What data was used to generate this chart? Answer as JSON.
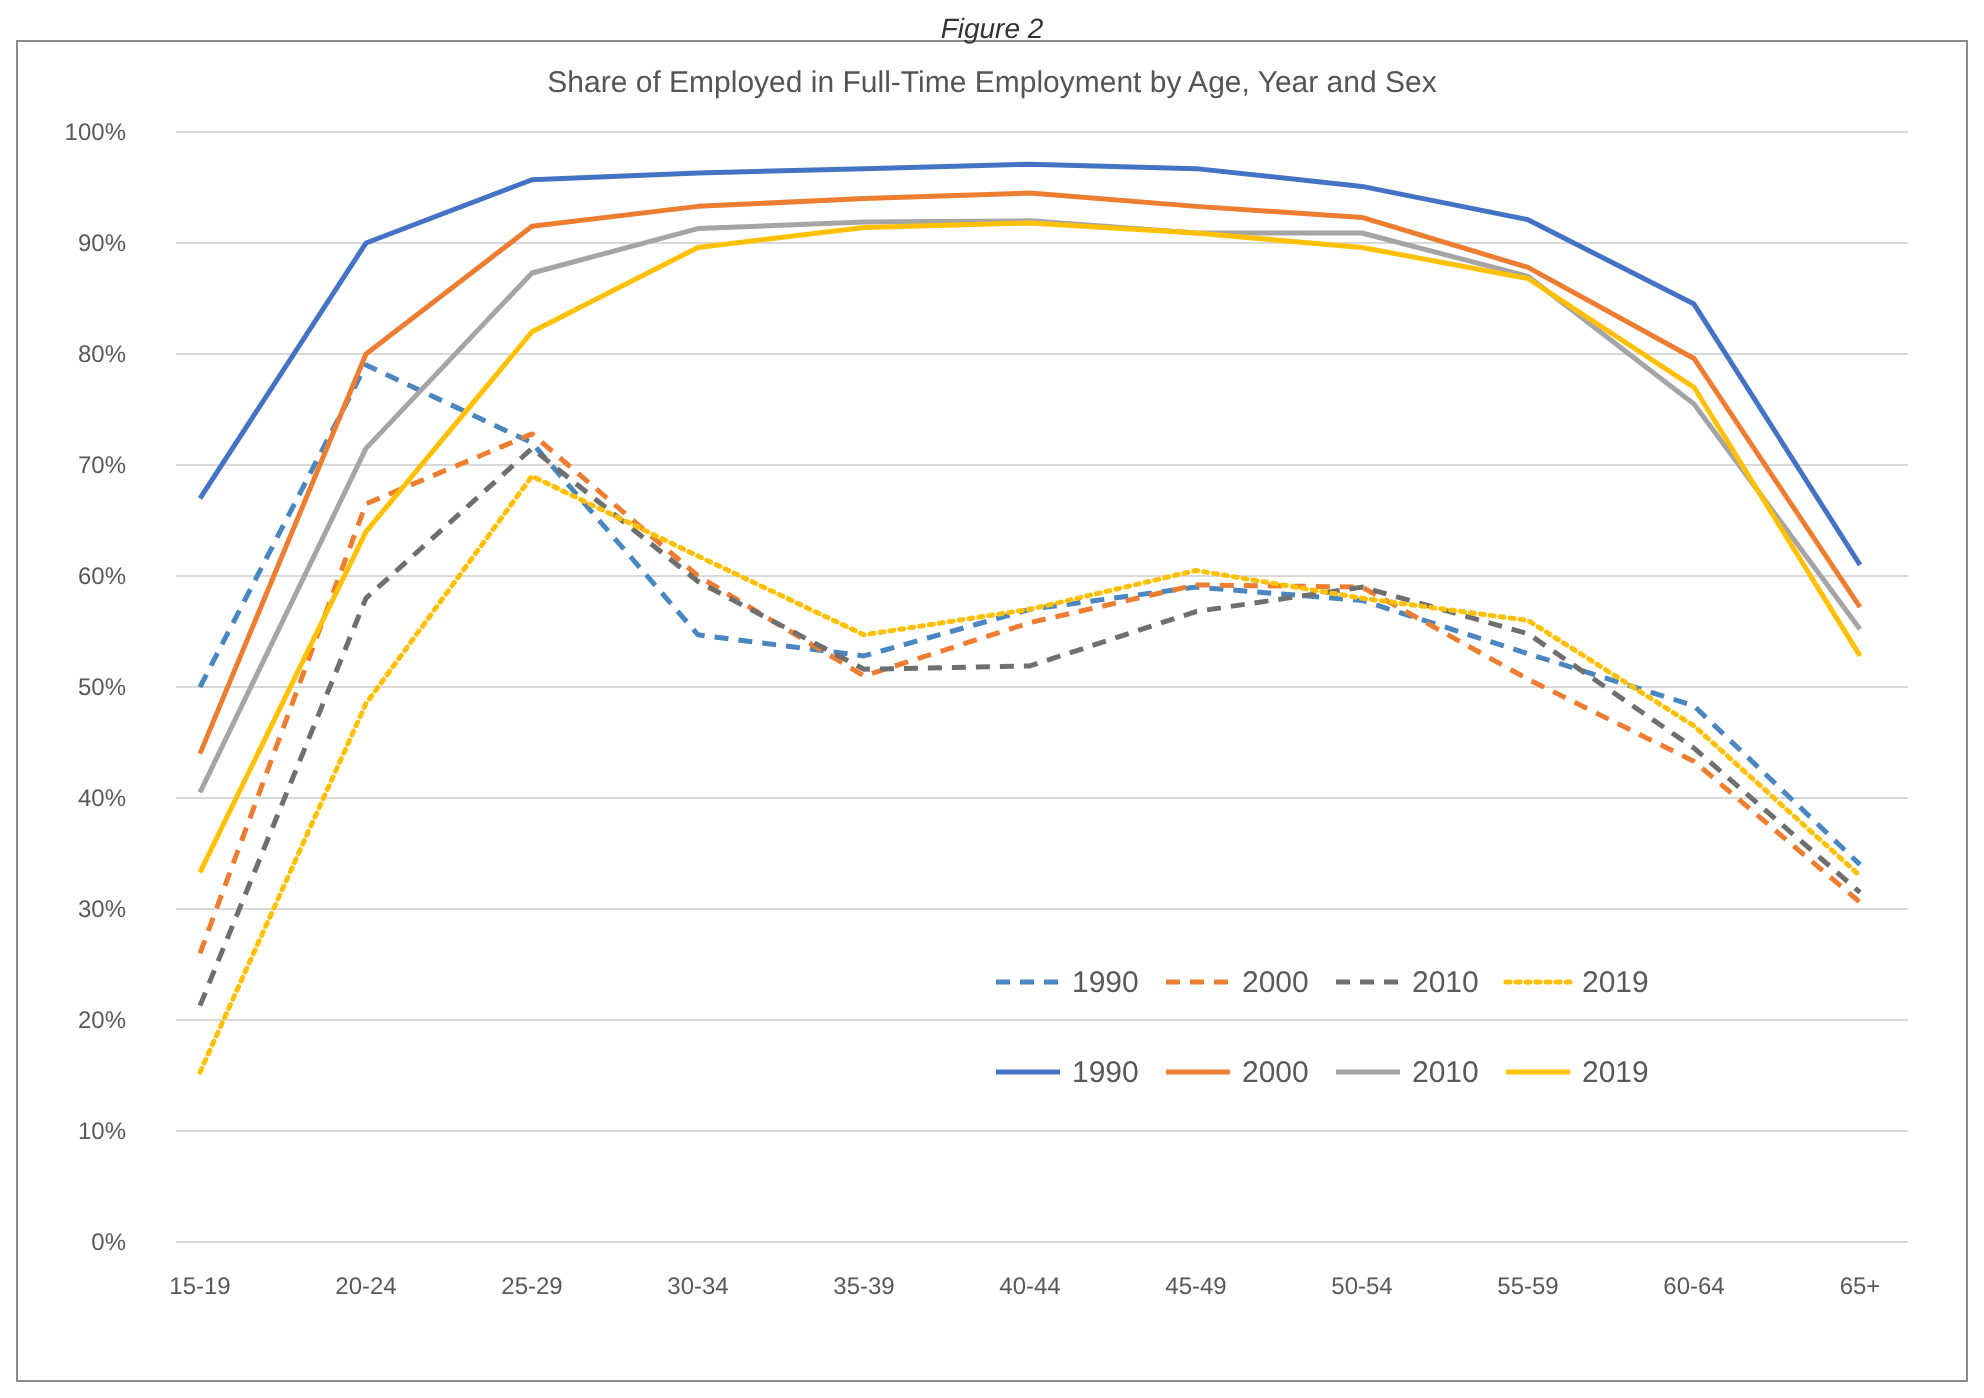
{
  "chart_data": {
    "type": "line",
    "title": "Share of Employed in Full-Time Employment by Age, Year and Sex",
    "annotations": [
      "Figure 2"
    ],
    "categories": [
      "15-19",
      "20-24",
      "25-29",
      "30-34",
      "35-39",
      "40-44",
      "45-49",
      "50-54",
      "55-59",
      "60-64",
      "65+"
    ],
    "ylim": [
      0,
      100
    ],
    "yticks": [
      {
        "value": 0,
        "label": "0%"
      },
      {
        "value": 10,
        "label": "10%"
      },
      {
        "value": 20,
        "label": "20%"
      },
      {
        "value": 30,
        "label": "30%"
      },
      {
        "value": 40,
        "label": "40%"
      },
      {
        "value": 50,
        "label": "50%"
      },
      {
        "value": 60,
        "label": "60%"
      },
      {
        "value": 70,
        "label": "70%"
      },
      {
        "value": 80,
        "label": "80%"
      },
      {
        "value": 90,
        "label": "90%"
      },
      {
        "value": 100,
        "label": "100%"
      }
    ],
    "grid": "y",
    "legend": "bottom",
    "marker": "none",
    "series": [
      {
        "name": "1990",
        "color": "#4a86c0",
        "line_style": "dashed",
        "values": [
          50,
          79,
          72,
          54.7,
          52.8,
          57,
          59,
          57.8,
          53,
          48.3,
          34
        ]
      },
      {
        "name": "2000",
        "color": "#ed7d31",
        "line_style": "dashed",
        "values": [
          26,
          66.5,
          72.8,
          60,
          51,
          55.8,
          59.2,
          59,
          50.7,
          43.3,
          30.6
        ]
      },
      {
        "name": "2010",
        "color": "#6f6f6f",
        "line_style": "dashed",
        "values": [
          21.3,
          58,
          71.5,
          59.5,
          51.6,
          51.9,
          56.8,
          59,
          54.8,
          44.5,
          31.5
        ]
      },
      {
        "name": "2019",
        "color": "#ffc000",
        "line_style": "dotted",
        "values": [
          15.3,
          48.5,
          69,
          61.8,
          54.7,
          57,
          60.5,
          58,
          56,
          46.5,
          33
        ]
      },
      {
        "name": "1990",
        "color": "#4472c4",
        "line_style": "solid",
        "values": [
          67,
          90,
          95.7,
          96.3,
          96.7,
          97.1,
          96.7,
          95.1,
          92.1,
          84.5,
          61
        ]
      },
      {
        "name": "2000",
        "color": "#ed7d31",
        "line_style": "solid",
        "values": [
          44,
          80,
          91.5,
          93.3,
          94,
          94.5,
          93.3,
          92.3,
          87.8,
          79.6,
          57.2
        ]
      },
      {
        "name": "2010",
        "color": "#a5a5a5",
        "line_style": "solid",
        "values": [
          40.5,
          71.5,
          87.3,
          91.3,
          91.9,
          92,
          90.9,
          90.9,
          87,
          75.5,
          55.2
        ]
      },
      {
        "name": "2019",
        "color": "#ffc000",
        "line_style": "solid",
        "values": [
          33.3,
          64,
          82,
          89.6,
          91.4,
          91.8,
          90.9,
          89.6,
          86.8,
          77,
          52.8
        ]
      }
    ]
  }
}
